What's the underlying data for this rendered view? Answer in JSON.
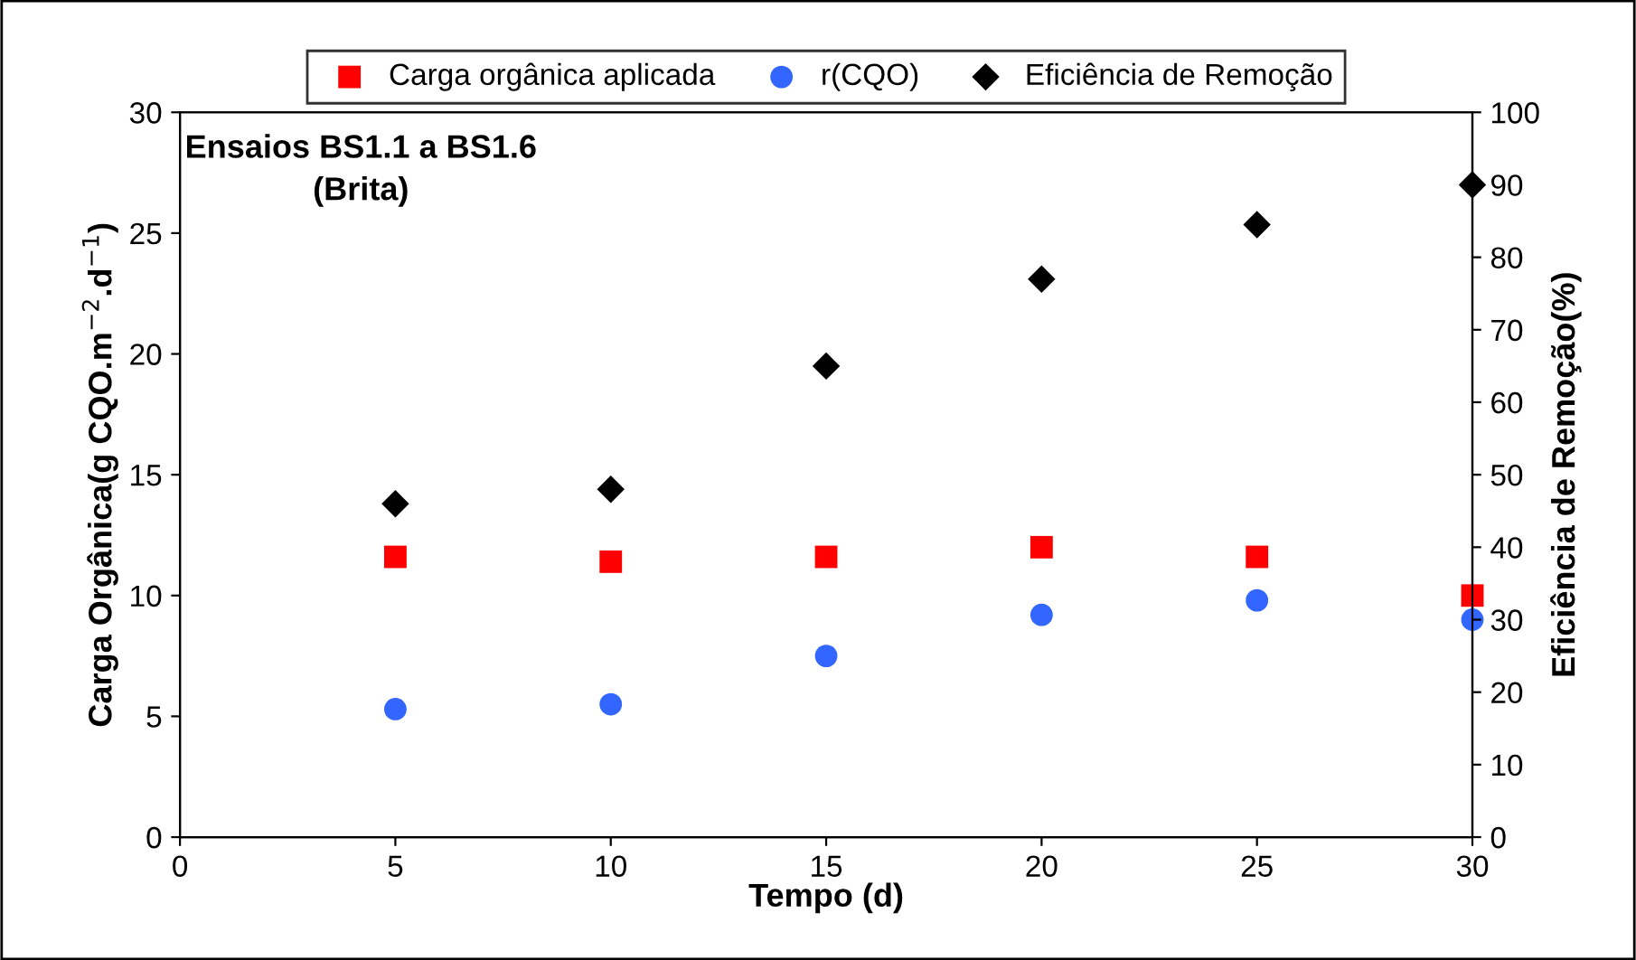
{
  "chart_data": {
    "type": "scatter",
    "xlabel": "Tempo (d)",
    "ylabel": "Carga Orgânica(g CQO.m$^{−2}$.d$^{−1}$)",
    "y2label": "Eficiência de Remoção(%)",
    "annotations": [
      "Ensaios BS1.1 a BS1.6\n(Brita)"
    ],
    "x": [
      5,
      10,
      15,
      20,
      25,
      30
    ],
    "series": [
      {
        "name": "Carga orgânica aplicada",
        "color": "#ff0000",
        "marker": "square",
        "values": [
          11.6,
          11.4,
          11.6,
          12.0,
          11.6,
          10.0
        ]
      },
      {
        "name": "r(CQO)",
        "color": "#3366ff",
        "marker": "circle",
        "values": [
          5.3,
          5.5,
          7.5,
          9.2,
          9.8,
          9.0
        ]
      },
      {
        "name": "Eficiência de Remoção",
        "color": "#000000",
        "marker": "diamond",
        "axis": "y2",
        "values": [
          46,
          48,
          65,
          77,
          84.5,
          90
        ]
      }
    ],
    "xlim": [
      0,
      30
    ],
    "xticks": [
      0,
      5,
      10,
      15,
      20,
      25,
      30
    ],
    "ylim": [
      0,
      30
    ],
    "yticks": [
      0,
      5,
      10,
      15,
      20,
      25,
      30
    ],
    "y2lim": [
      0,
      100
    ],
    "y2ticks": [
      0,
      10,
      20,
      30,
      40,
      50,
      60,
      70,
      80,
      90,
      100
    ],
    "grid": false,
    "legend": "top"
  }
}
